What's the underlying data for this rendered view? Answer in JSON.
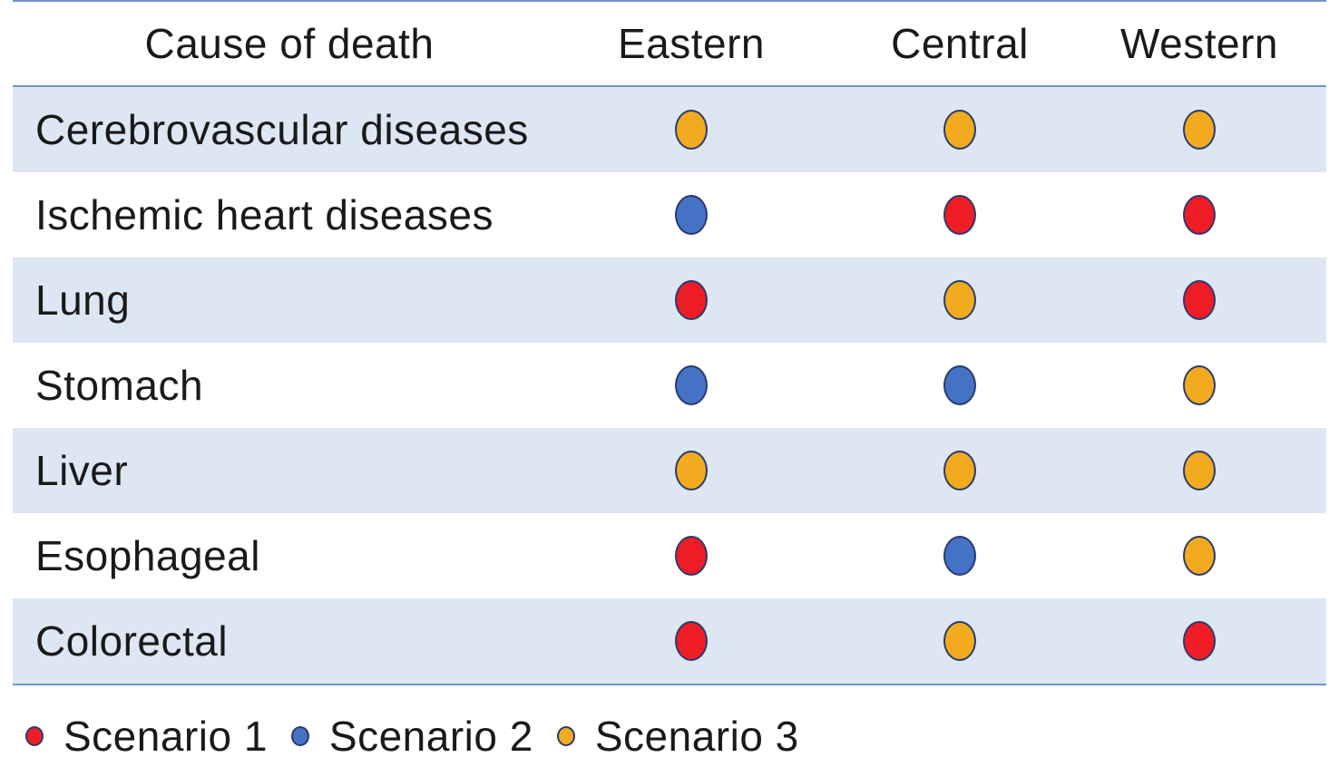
{
  "chart_data": {
    "type": "table",
    "columns": [
      "Cause of death",
      "Eastern",
      "Central",
      "Western"
    ],
    "rows": [
      {
        "cause": "Cerebrovascular diseases",
        "values": [
          "Scenario 3",
          "Scenario 3",
          "Scenario 3"
        ]
      },
      {
        "cause": "Ischemic heart diseases",
        "values": [
          "Scenario 2",
          "Scenario 1",
          "Scenario 1"
        ]
      },
      {
        "cause": "Lung",
        "values": [
          "Scenario 1",
          "Scenario 3",
          "Scenario 1"
        ]
      },
      {
        "cause": "Stomach",
        "values": [
          "Scenario 2",
          "Scenario 2",
          "Scenario 3"
        ]
      },
      {
        "cause": "Liver",
        "values": [
          "Scenario 3",
          "Scenario 3",
          "Scenario 3"
        ]
      },
      {
        "cause": "Esophageal",
        "values": [
          "Scenario 1",
          "Scenario 2",
          "Scenario 3"
        ]
      },
      {
        "cause": "Colorectal",
        "values": [
          "Scenario 1",
          "Scenario 3",
          "Scenario 1"
        ]
      }
    ],
    "legend": [
      {
        "label": "Scenario 1",
        "color": "#ee1c25"
      },
      {
        "label": "Scenario 2",
        "color": "#4472c4"
      },
      {
        "label": "Scenario 3",
        "color": "#f2ab1f"
      }
    ]
  },
  "colors": {
    "rule": "#6f94c8",
    "shaded_row": "#dde7f3",
    "dot_border": "#2b3b6e"
  }
}
